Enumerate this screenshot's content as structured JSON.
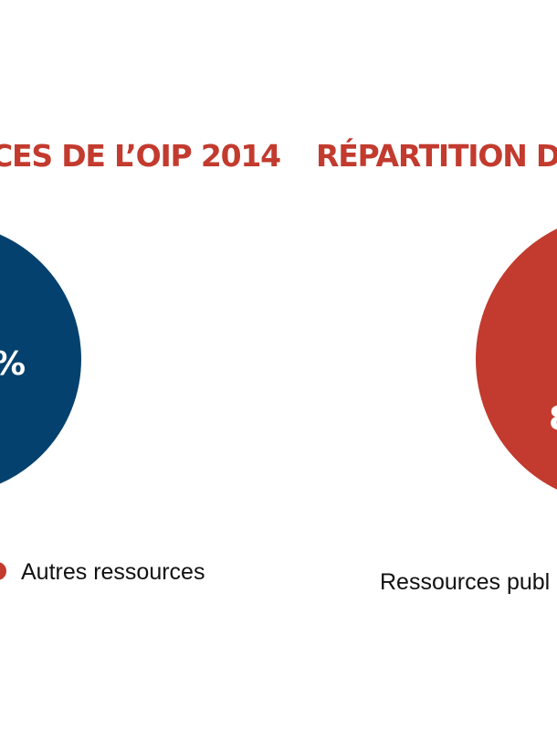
{
  "colors": {
    "accent_red": "#c23b2e",
    "navy": "#05416e",
    "text": "#111111"
  },
  "chart_data": [
    {
      "type": "pie",
      "title": "CES DE L’OIP 2014",
      "slices": [
        {
          "label": "%",
          "color": "#05416e"
        }
      ],
      "legend": [
        {
          "label": "Autres ressources",
          "color": "#c23b2e"
        }
      ]
    },
    {
      "type": "pie",
      "title": "RÉPARTITION DES",
      "slices": [
        {
          "label": "8",
          "color": "#c23b2e"
        }
      ],
      "legend": [
        {
          "label": "Ressources publ"
        }
      ]
    }
  ]
}
